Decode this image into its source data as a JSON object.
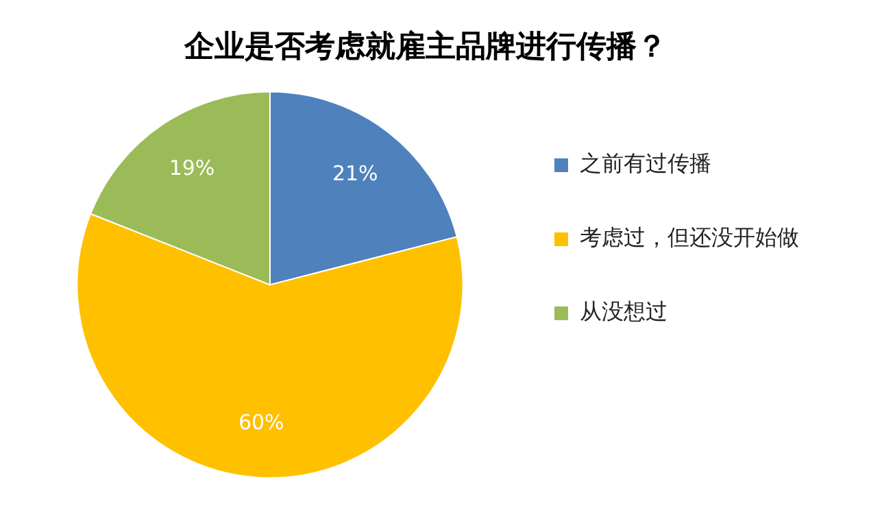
{
  "chart_data": {
    "type": "pie",
    "title": "企业是否考虑就雇主品牌进行传播？",
    "categories": [
      "之前有过传播",
      "考虑过，但还没开始做",
      "从没想过"
    ],
    "values": [
      21,
      60,
      19
    ],
    "value_labels": [
      "21%",
      "60%",
      "19%"
    ],
    "colors": [
      "#4f81bd",
      "#ffc000",
      "#9bbb59"
    ],
    "legend": "right"
  }
}
